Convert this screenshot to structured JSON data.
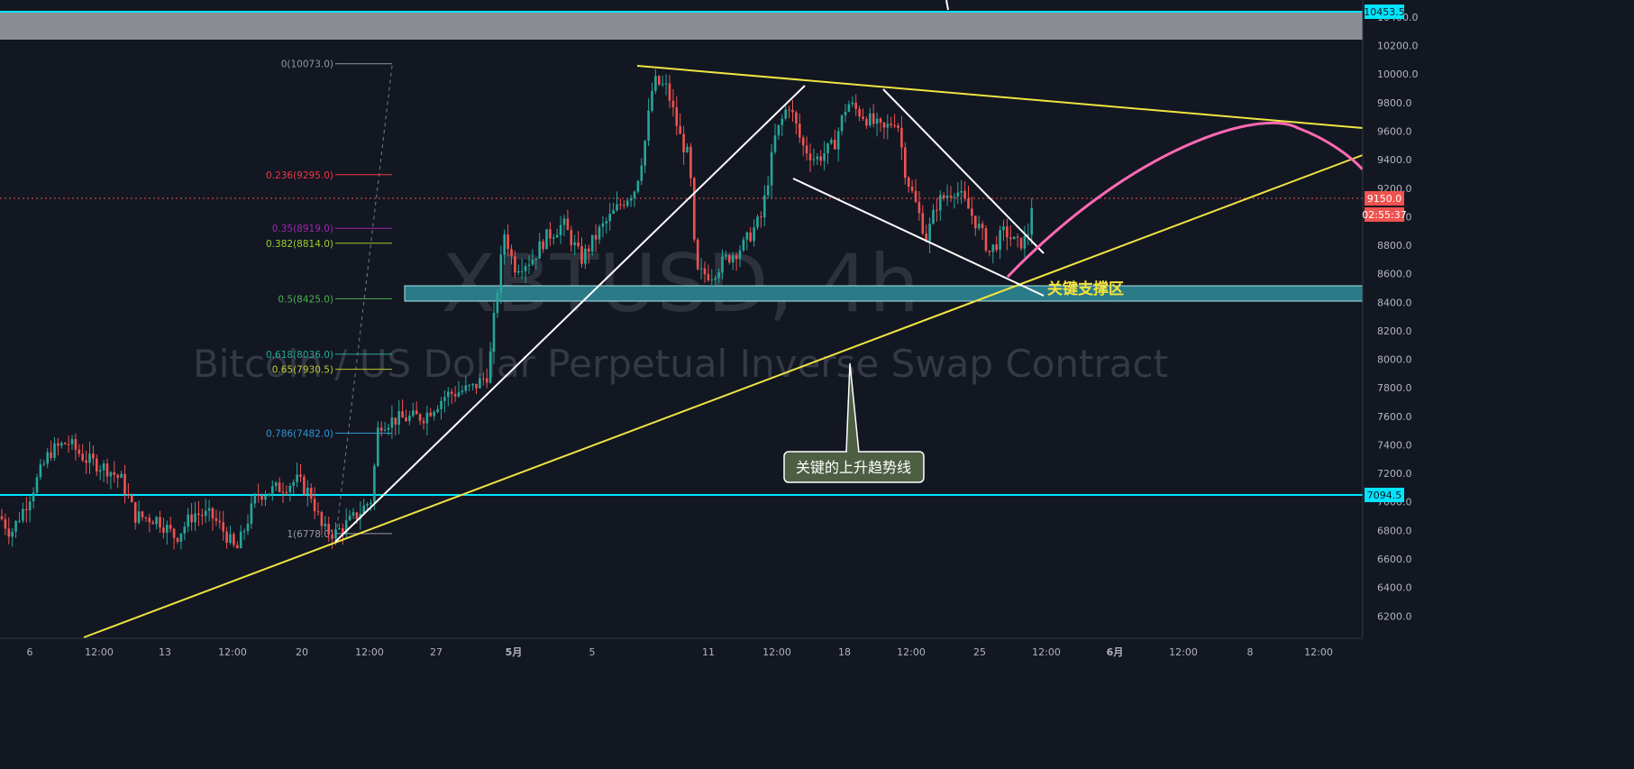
{
  "chart_data": {
    "type": "candlestick",
    "symbol": "XBTUSD, 4h",
    "description": "Bitcoin / US Dollar Perpetual Inverse Swap Contract",
    "ylim": [
      6050,
      10520
    ],
    "y_ticks": [
      "6200.0",
      "6400.0",
      "6600.0",
      "6800.0",
      "7000.0",
      "7200.0",
      "7400.0",
      "7600.0",
      "7800.0",
      "8000.0",
      "8200.0",
      "8400.0",
      "8600.0",
      "8800.0",
      "9000.0",
      "9200.0",
      "9400.0",
      "9600.0",
      "9800.0",
      "10000.0",
      "10200.0",
      "10400.0"
    ],
    "x_ticks": [
      "6",
      "12:00",
      "13",
      "12:00",
      "20",
      "12:00",
      "27",
      "5月",
      "5",
      "11",
      "12:00",
      "18",
      "12:00",
      "25",
      "12:00",
      "6月",
      "12:00",
      "8",
      "12:00"
    ],
    "x_tick_bold": [
      "5月",
      "6月"
    ],
    "price_labels": {
      "top_level": "10453.5",
      "current_price": "9150.0",
      "countdown": "02:55:37",
      "support_level": "7094.5"
    },
    "fibonacci": [
      {
        "label": "0(10073.0)",
        "value": 10073.0,
        "color": "#9598a1"
      },
      {
        "label": "0.236(9295.0)",
        "value": 9295.0,
        "color": "#f23645"
      },
      {
        "label": "0.35(8919.0)",
        "value": 8919.0,
        "color": "#9c27b0"
      },
      {
        "label": "0.382(8814.0)",
        "value": 8814.0,
        "color": "#9ccc2c"
      },
      {
        "label": "0.5(8425.0)",
        "value": 8425.0,
        "color": "#4caf50"
      },
      {
        "label": "0.618(8036.0)",
        "value": 8036.0,
        "color": "#22ab94"
      },
      {
        "label": "0.65(7930.5)",
        "value": 7930.5,
        "color": "#c0ca33"
      },
      {
        "label": "0.786(7482.0)",
        "value": 7482.0,
        "color": "#2e96d3"
      },
      {
        "label": "1(6778.0)",
        "value": 6778.0,
        "color": "#9598a1"
      }
    ],
    "annotations": {
      "support_zone": "关键支撑区",
      "trendline_callout": "关键的上升趋势线"
    },
    "colors": {
      "background": "#131722",
      "up": "#26a69a",
      "down": "#ef5350",
      "trendline": "#f0e442",
      "channel": "#ffffff",
      "projection": "#ff69b4",
      "level_line": "#00e5ff",
      "zone_fill": "#2a7b87",
      "label_text": "#f5e23a"
    },
    "series_keypoints": [
      {
        "x": 0,
        "y": 6900
      },
      {
        "x": 12,
        "y": 6780
      },
      {
        "x": 30,
        "y": 7000
      },
      {
        "x": 55,
        "y": 7350
      },
      {
        "x": 75,
        "y": 7420
      },
      {
        "x": 95,
        "y": 7300
      },
      {
        "x": 120,
        "y": 7230
      },
      {
        "x": 135,
        "y": 7150
      },
      {
        "x": 150,
        "y": 6900
      },
      {
        "x": 175,
        "y": 6880
      },
      {
        "x": 195,
        "y": 6750
      },
      {
        "x": 215,
        "y": 6920
      },
      {
        "x": 235,
        "y": 6900
      },
      {
        "x": 250,
        "y": 6780
      },
      {
        "x": 262,
        "y": 6650
      },
      {
        "x": 285,
        "y": 7050
      },
      {
        "x": 310,
        "y": 7100
      },
      {
        "x": 330,
        "y": 7150
      },
      {
        "x": 345,
        "y": 7050
      },
      {
        "x": 358,
        "y": 6800
      },
      {
        "x": 372,
        "y": 6780
      },
      {
        "x": 395,
        "y": 6900
      },
      {
        "x": 412,
        "y": 7020
      },
      {
        "x": 420,
        "y": 7550
      },
      {
        "x": 440,
        "y": 7580
      },
      {
        "x": 470,
        "y": 7600
      },
      {
        "x": 495,
        "y": 7750
      },
      {
        "x": 525,
        "y": 7800
      },
      {
        "x": 542,
        "y": 7900
      },
      {
        "x": 550,
        "y": 8400
      },
      {
        "x": 560,
        "y": 8900
      },
      {
        "x": 570,
        "y": 8650
      },
      {
        "x": 590,
        "y": 8700
      },
      {
        "x": 605,
        "y": 8850
      },
      {
        "x": 625,
        "y": 8950
      },
      {
        "x": 645,
        "y": 8700
      },
      {
        "x": 665,
        "y": 8900
      },
      {
        "x": 690,
        "y": 9100
      },
      {
        "x": 705,
        "y": 9200
      },
      {
        "x": 715,
        "y": 9500
      },
      {
        "x": 725,
        "y": 9950
      },
      {
        "x": 740,
        "y": 9900
      },
      {
        "x": 755,
        "y": 9550
      },
      {
        "x": 765,
        "y": 9400
      },
      {
        "x": 772,
        "y": 8600
      },
      {
        "x": 790,
        "y": 8600
      },
      {
        "x": 805,
        "y": 8700
      },
      {
        "x": 825,
        "y": 8800
      },
      {
        "x": 845,
        "y": 9000
      },
      {
        "x": 860,
        "y": 9550
      },
      {
        "x": 875,
        "y": 9800
      },
      {
        "x": 890,
        "y": 9500
      },
      {
        "x": 905,
        "y": 9400
      },
      {
        "x": 925,
        "y": 9500
      },
      {
        "x": 940,
        "y": 9800
      },
      {
        "x": 960,
        "y": 9700
      },
      {
        "x": 980,
        "y": 9600
      },
      {
        "x": 995,
        "y": 9700
      },
      {
        "x": 1005,
        "y": 9300
      },
      {
        "x": 1018,
        "y": 9050
      },
      {
        "x": 1028,
        "y": 8850
      },
      {
        "x": 1040,
        "y": 9100
      },
      {
        "x": 1060,
        "y": 9200
      },
      {
        "x": 1075,
        "y": 9050
      },
      {
        "x": 1088,
        "y": 8900
      },
      {
        "x": 1098,
        "y": 8750
      },
      {
        "x": 1115,
        "y": 8900
      },
      {
        "x": 1128,
        "y": 8800
      },
      {
        "x": 1140,
        "y": 8850
      },
      {
        "x": 1146,
        "y": 9150
      }
    ]
  }
}
